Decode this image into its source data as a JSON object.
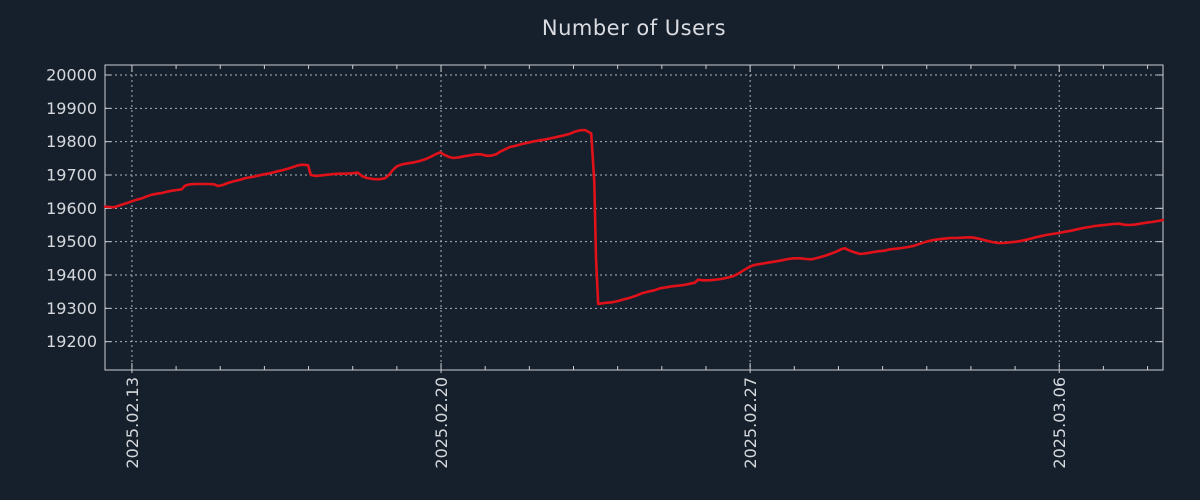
{
  "page_bg": "#16202c",
  "chart_data": {
    "type": "line",
    "title": "Number of Users",
    "legend": false,
    "grid": true,
    "colors": {
      "line": "#e01119",
      "axis_border": "#c9ced4",
      "grid": "#a9b0b8",
      "tick_label": "#d5d8dc",
      "title": "#dadce1"
    },
    "x_axis": {
      "unit": "days since 2025.02.13",
      "range": [
        -0.61,
        23.35
      ],
      "minor_tick_interval_days": 1,
      "major_ticks": [
        {
          "day": 0,
          "label": "2025.02.13"
        },
        {
          "day": 7,
          "label": "2025.02.20"
        },
        {
          "day": 14,
          "label": "2025.02.27"
        },
        {
          "day": 21,
          "label": "2025.03.06"
        }
      ]
    },
    "y_axis": {
      "range": [
        19115,
        20030
      ],
      "tick_values": [
        19200,
        19300,
        19400,
        19500,
        19600,
        19700,
        19800,
        19900,
        20000
      ],
      "tick_labels": [
        "19200",
        "19300",
        "19400",
        "19500",
        "19600",
        "19700",
        "19800",
        "19900",
        "20000"
      ]
    },
    "series": [
      {
        "name": "Number of Users",
        "color": "#e01119",
        "points": [
          [
            -0.61,
            19605
          ],
          [
            -0.5,
            19604
          ],
          [
            -0.41,
            19603
          ],
          [
            -0.32,
            19607
          ],
          [
            -0.23,
            19611
          ],
          [
            -0.11,
            19616
          ],
          [
            0.0,
            19621
          ],
          [
            0.11,
            19626
          ],
          [
            0.23,
            19630
          ],
          [
            0.34,
            19636
          ],
          [
            0.45,
            19641
          ],
          [
            0.57,
            19644
          ],
          [
            0.68,
            19646
          ],
          [
            0.79,
            19650
          ],
          [
            0.91,
            19653
          ],
          [
            1.02,
            19655
          ],
          [
            1.13,
            19657
          ],
          [
            1.2,
            19668
          ],
          [
            1.31,
            19672
          ],
          [
            1.45,
            19673
          ],
          [
            1.59,
            19673
          ],
          [
            1.72,
            19673
          ],
          [
            1.86,
            19672
          ],
          [
            1.95,
            19667
          ],
          [
            2.06,
            19670
          ],
          [
            2.17,
            19676
          ],
          [
            2.31,
            19681
          ],
          [
            2.45,
            19686
          ],
          [
            2.58,
            19691
          ],
          [
            2.72,
            19694
          ],
          [
            2.85,
            19698
          ],
          [
            2.99,
            19702
          ],
          [
            3.13,
            19705
          ],
          [
            3.26,
            19710
          ],
          [
            3.4,
            19714
          ],
          [
            3.53,
            19719
          ],
          [
            3.65,
            19724
          ],
          [
            3.76,
            19729
          ],
          [
            3.87,
            19731
          ],
          [
            3.99,
            19729
          ],
          [
            4.05,
            19700
          ],
          [
            4.17,
            19697
          ],
          [
            4.3,
            19699
          ],
          [
            4.44,
            19701
          ],
          [
            4.58,
            19703
          ],
          [
            4.71,
            19704
          ],
          [
            4.85,
            19704
          ],
          [
            4.98,
            19705
          ],
          [
            5.12,
            19707
          ],
          [
            5.21,
            19697
          ],
          [
            5.32,
            19691
          ],
          [
            5.46,
            19688
          ],
          [
            5.6,
            19687
          ],
          [
            5.73,
            19690
          ],
          [
            5.82,
            19700
          ],
          [
            5.91,
            19715
          ],
          [
            6.0,
            19726
          ],
          [
            6.12,
            19732
          ],
          [
            6.25,
            19735
          ],
          [
            6.39,
            19738
          ],
          [
            6.52,
            19742
          ],
          [
            6.66,
            19748
          ],
          [
            6.77,
            19755
          ],
          [
            6.89,
            19763
          ],
          [
            6.98,
            19768
          ],
          [
            7.07,
            19761
          ],
          [
            7.18,
            19754
          ],
          [
            7.29,
            19751
          ],
          [
            7.41,
            19753
          ],
          [
            7.52,
            19756
          ],
          [
            7.66,
            19759
          ],
          [
            7.79,
            19762
          ],
          [
            7.91,
            19762
          ],
          [
            8.02,
            19758
          ],
          [
            8.13,
            19758
          ],
          [
            8.25,
            19762
          ],
          [
            8.34,
            19770
          ],
          [
            8.45,
            19777
          ],
          [
            8.56,
            19784
          ],
          [
            8.7,
            19788
          ],
          [
            8.83,
            19793
          ],
          [
            8.97,
            19797
          ],
          [
            9.11,
            19801
          ],
          [
            9.24,
            19804
          ],
          [
            9.38,
            19807
          ],
          [
            9.51,
            19811
          ],
          [
            9.65,
            19815
          ],
          [
            9.79,
            19819
          ],
          [
            9.92,
            19824
          ],
          [
            10.03,
            19830
          ],
          [
            10.15,
            19834
          ],
          [
            10.26,
            19835
          ],
          [
            10.35,
            19828
          ],
          [
            10.4,
            19825
          ],
          [
            10.47,
            19680
          ],
          [
            10.51,
            19450
          ],
          [
            10.56,
            19313
          ],
          [
            10.65,
            19315
          ],
          [
            10.76,
            19317
          ],
          [
            10.87,
            19318
          ],
          [
            11.01,
            19322
          ],
          [
            11.15,
            19327
          ],
          [
            11.28,
            19332
          ],
          [
            11.42,
            19338
          ],
          [
            11.55,
            19345
          ],
          [
            11.69,
            19350
          ],
          [
            11.83,
            19354
          ],
          [
            11.96,
            19360
          ],
          [
            12.1,
            19363
          ],
          [
            12.23,
            19366
          ],
          [
            12.37,
            19368
          ],
          [
            12.5,
            19370
          ],
          [
            12.64,
            19374
          ],
          [
            12.75,
            19377
          ],
          [
            12.82,
            19386
          ],
          [
            12.93,
            19384
          ],
          [
            13.07,
            19384
          ],
          [
            13.21,
            19386
          ],
          [
            13.34,
            19388
          ],
          [
            13.48,
            19392
          ],
          [
            13.61,
            19396
          ],
          [
            13.73,
            19404
          ],
          [
            13.84,
            19413
          ],
          [
            13.95,
            19422
          ],
          [
            14.07,
            19429
          ],
          [
            14.18,
            19432
          ],
          [
            14.32,
            19435
          ],
          [
            14.45,
            19438
          ],
          [
            14.59,
            19441
          ],
          [
            14.72,
            19444
          ],
          [
            14.86,
            19448
          ],
          [
            15.0,
            19450
          ],
          [
            15.13,
            19450
          ],
          [
            15.27,
            19448
          ],
          [
            15.4,
            19447
          ],
          [
            15.54,
            19452
          ],
          [
            15.68,
            19457
          ],
          [
            15.81,
            19463
          ],
          [
            15.95,
            19470
          ],
          [
            16.06,
            19477
          ],
          [
            16.15,
            19480
          ],
          [
            16.24,
            19474
          ],
          [
            16.36,
            19468
          ],
          [
            16.49,
            19463
          ],
          [
            16.63,
            19465
          ],
          [
            16.76,
            19468
          ],
          [
            16.9,
            19471
          ],
          [
            17.04,
            19473
          ],
          [
            17.17,
            19477
          ],
          [
            17.31,
            19479
          ],
          [
            17.44,
            19481
          ],
          [
            17.58,
            19484
          ],
          [
            17.72,
            19488
          ],
          [
            17.85,
            19494
          ],
          [
            17.99,
            19500
          ],
          [
            18.12,
            19504
          ],
          [
            18.26,
            19507
          ],
          [
            18.39,
            19509
          ],
          [
            18.53,
            19511
          ],
          [
            18.67,
            19511
          ],
          [
            18.8,
            19512
          ],
          [
            18.94,
            19513
          ],
          [
            19.07,
            19512
          ],
          [
            19.21,
            19508
          ],
          [
            19.35,
            19503
          ],
          [
            19.48,
            19499
          ],
          [
            19.62,
            19496
          ],
          [
            19.75,
            19496
          ],
          [
            19.89,
            19498
          ],
          [
            20.03,
            19500
          ],
          [
            20.16,
            19503
          ],
          [
            20.3,
            19507
          ],
          [
            20.43,
            19512
          ],
          [
            20.57,
            19516
          ],
          [
            20.7,
            19520
          ],
          [
            20.84,
            19523
          ],
          [
            21.0,
            19526
          ],
          [
            21.14,
            19530
          ],
          [
            21.27,
            19533
          ],
          [
            21.41,
            19537
          ],
          [
            21.54,
            19541
          ],
          [
            21.68,
            19544
          ],
          [
            21.81,
            19547
          ],
          [
            21.95,
            19549
          ],
          [
            22.09,
            19551
          ],
          [
            22.22,
            19553
          ],
          [
            22.36,
            19554
          ],
          [
            22.47,
            19551
          ],
          [
            22.58,
            19550
          ],
          [
            22.7,
            19551
          ],
          [
            22.83,
            19554
          ],
          [
            22.97,
            19557
          ],
          [
            23.1,
            19559
          ],
          [
            23.24,
            19562
          ],
          [
            23.35,
            19565
          ]
        ]
      }
    ]
  }
}
